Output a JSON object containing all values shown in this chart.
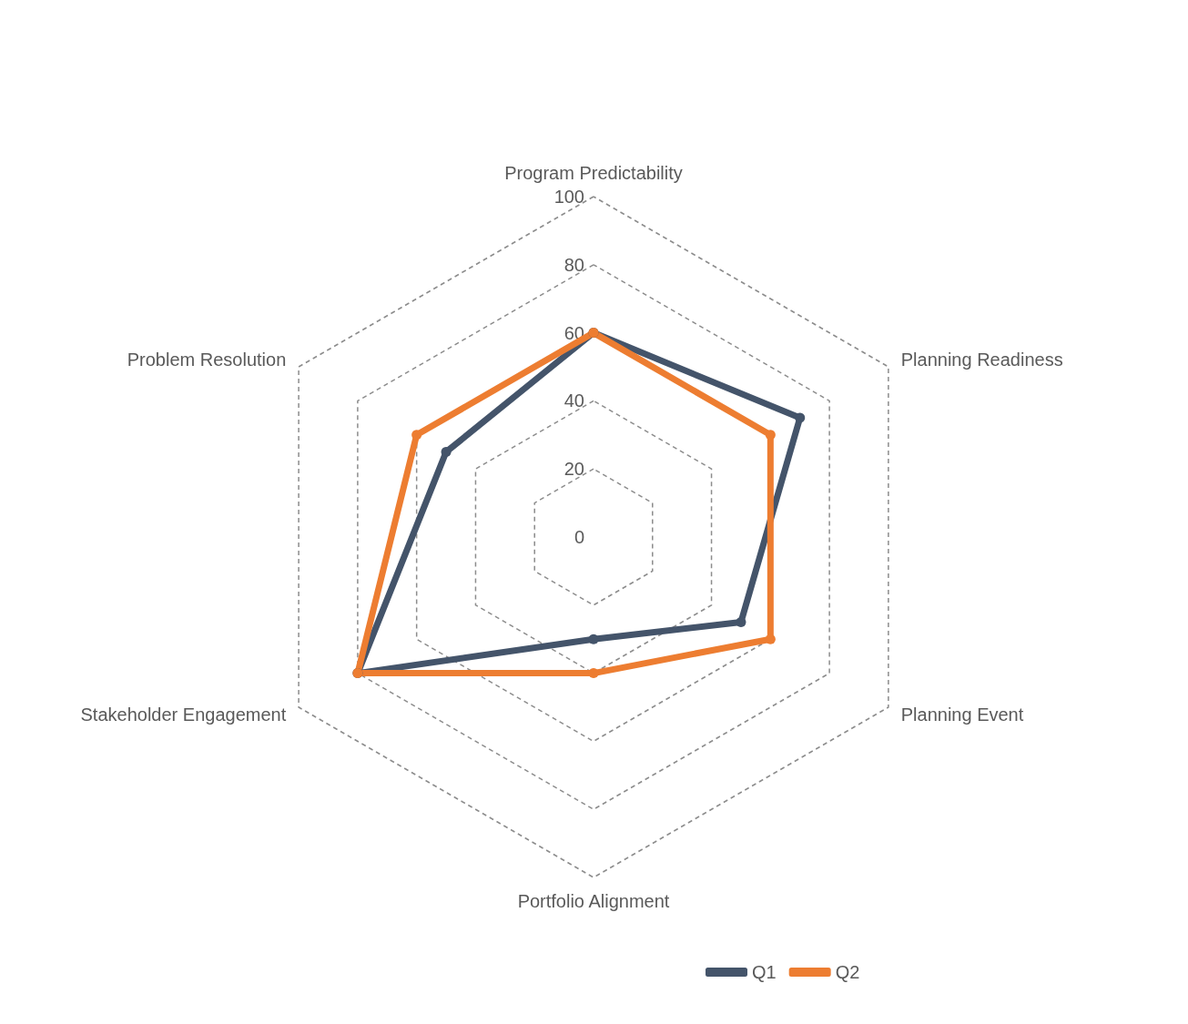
{
  "chart_data": {
    "type": "radar",
    "categories": [
      "Program Predictability",
      "Planning Readiness",
      "Planning Event",
      "Portfolio Alignment",
      "Stakeholder Engagement",
      "Problem Resolution"
    ],
    "series": [
      {
        "name": "Q1",
        "color": "#44546a",
        "values": [
          60,
          70,
          50,
          30,
          80,
          50
        ]
      },
      {
        "name": "Q2",
        "color": "#ed7d31",
        "values": [
          60,
          60,
          60,
          40,
          80,
          60
        ]
      }
    ],
    "ylim": [
      0,
      100
    ],
    "yticks": [
      0,
      20,
      40,
      60,
      80,
      100
    ],
    "grid": true,
    "legend": "bottom",
    "marker": "circle",
    "line_style": "solid"
  }
}
